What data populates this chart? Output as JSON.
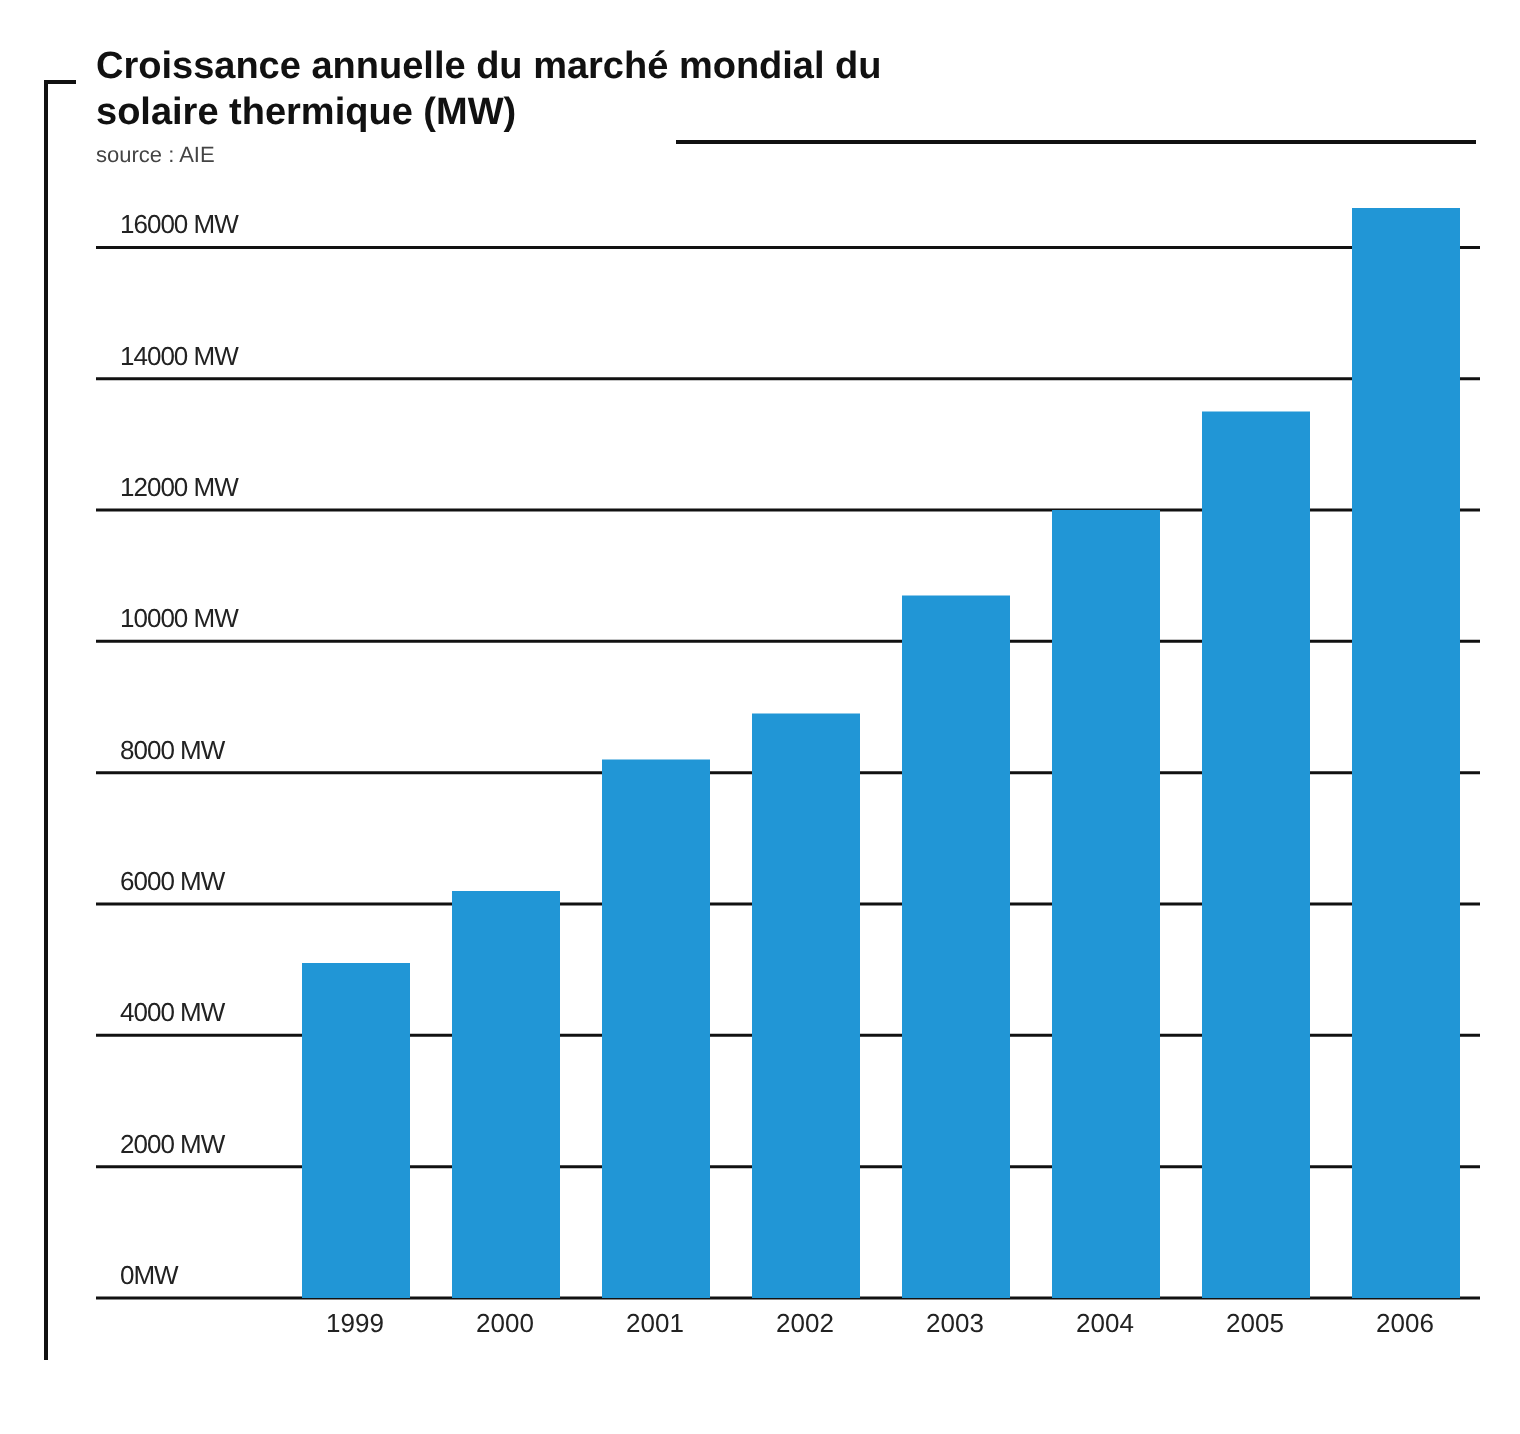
{
  "chart_data": {
    "type": "bar",
    "title": "Croissance annuelle du marché mondial du solaire thermique (MW)",
    "annotations": [
      "source : AIE"
    ],
    "categories": [
      "1999",
      "2000",
      "2001",
      "2002",
      "2003",
      "2004",
      "2005",
      "2006"
    ],
    "values": [
      5100,
      6200,
      8200,
      8900,
      10700,
      12000,
      13500,
      16600
    ],
    "color": "#2196d6",
    "ylim": [
      0,
      16600
    ],
    "yticks": [
      {
        "value": 0,
        "label": "0MW"
      },
      {
        "value": 2000,
        "label": "2000 MW"
      },
      {
        "value": 4000,
        "label": "4000 MW"
      },
      {
        "value": 6000,
        "label": "6000 MW"
      },
      {
        "value": 8000,
        "label": "8000 MW"
      },
      {
        "value": 10000,
        "label": "10000 MW"
      },
      {
        "value": 12000,
        "label": "12000 MW"
      },
      {
        "value": 14000,
        "label": "14000 MW"
      },
      {
        "value": 16000,
        "label": "16000 MW"
      }
    ],
    "grid": "y"
  }
}
